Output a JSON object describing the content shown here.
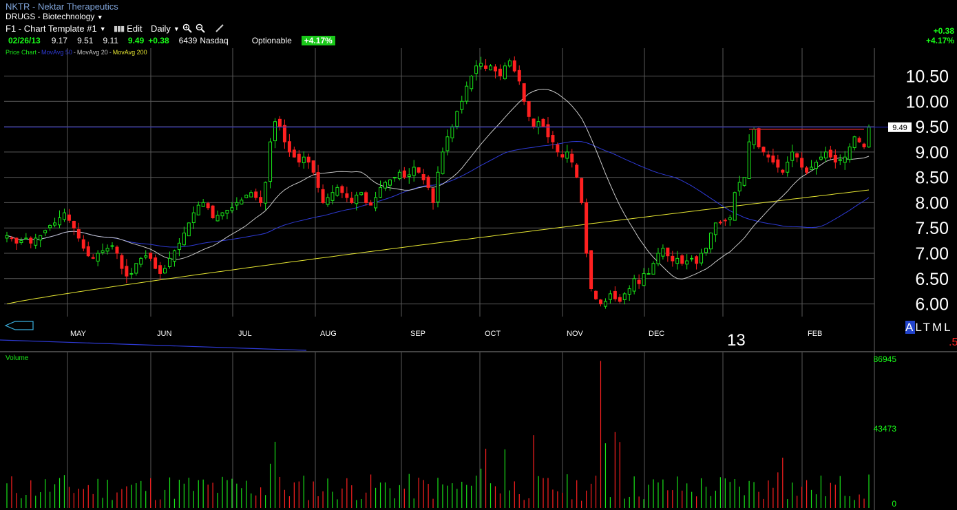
{
  "header": {
    "title": "NKTR - Nektar Therapeutics",
    "sector": "DRUGS - Biotechnology"
  },
  "toolbar": {
    "template_label": "F1 - Chart Template #1",
    "edit_label": "Edit",
    "period_label": "Daily"
  },
  "quote": {
    "date": "02/26/13",
    "open": "9.17",
    "high": "9.51",
    "low": "9.11",
    "last": "9.49",
    "change": "+0.38",
    "volume": "6439",
    "exchange": "Nasdaq",
    "optionable": "Optionable",
    "pct_badge": "+4.17%"
  },
  "right_change": {
    "change": "+0.38",
    "pct": "+4.17%"
  },
  "legend": {
    "price_chart": "Price Chart",
    "ma50": "MovAvg 50",
    "ma20": "MovAvg 20",
    "ma200": "MovAvg 200",
    "sep": "-"
  },
  "colors": {
    "up": "#19e619",
    "down": "#ff2020",
    "ma50": "#2e3ad6",
    "ma20": "#c8c8c8",
    "ma200": "#e6e632",
    "grid": "#5a5a5a",
    "last_line": "#2828d2",
    "resistance": "#c8282a"
  },
  "tml": {
    "a": "A",
    "l": "L",
    "t": "T",
    "m": "M",
    "l2": "L"
  },
  "year_label": "13",
  "corner_label": ".5",
  "chart_data": [
    {
      "type": "candlestick",
      "title": "",
      "y_ticks": [
        "10.50",
        "10.00",
        "9.50",
        "9.00",
        "8.50",
        "8.00",
        "7.50",
        "7.00",
        "6.50",
        "6.00"
      ],
      "ylim": [
        5.75,
        11.05
      ],
      "x_months": [
        "MAY",
        "JUN",
        "JUL",
        "AUG",
        "SEP",
        "OCT",
        "NOV",
        "DEC",
        "FEB"
      ],
      "last_price_label": "9.49",
      "last_price": 9.49,
      "close_series": [
        7.35,
        7.3,
        7.2,
        7.25,
        7.3,
        7.2,
        7.3,
        7.35,
        7.45,
        7.55,
        7.6,
        7.7,
        7.8,
        7.65,
        7.5,
        7.3,
        7.1,
        6.95,
        6.9,
        7.0,
        7.05,
        7.1,
        7.15,
        7.0,
        6.7,
        6.55,
        6.6,
        6.8,
        6.9,
        6.95,
        6.9,
        6.7,
        6.6,
        6.7,
        6.9,
        7.05,
        7.2,
        7.4,
        7.6,
        7.8,
        7.95,
        8.0,
        7.9,
        7.7,
        7.75,
        7.8,
        7.85,
        7.9,
        8.0,
        8.05,
        8.15,
        8.2,
        8.1,
        8.0,
        8.4,
        9.2,
        9.6,
        9.5,
        9.2,
        9.0,
        8.9,
        8.8,
        8.9,
        8.8,
        8.6,
        8.3,
        8.0,
        8.1,
        8.2,
        8.3,
        8.2,
        8.1,
        8.0,
        8.15,
        8.2,
        8.0,
        7.95,
        8.1,
        8.3,
        8.4,
        8.45,
        8.5,
        8.6,
        8.5,
        8.55,
        8.7,
        8.6,
        8.45,
        8.3,
        8.0,
        8.6,
        9.0,
        9.3,
        9.5,
        9.8,
        10.0,
        10.3,
        10.5,
        10.7,
        10.75,
        10.65,
        10.7,
        10.6,
        10.5,
        10.7,
        10.8,
        10.6,
        10.4,
        10.0,
        9.7,
        9.5,
        9.6,
        9.5,
        9.3,
        9.2,
        9.0,
        8.9,
        9.0,
        8.8,
        8.5,
        8.0,
        7.0,
        6.3,
        6.1,
        6.0,
        6.05,
        6.2,
        6.1,
        6.05,
        6.2,
        6.3,
        6.5,
        6.4,
        6.6,
        6.6,
        6.8,
        7.0,
        7.1,
        6.95,
        6.85,
        6.9,
        6.8,
        6.85,
        6.9,
        6.8,
        7.0,
        7.1,
        7.4,
        7.6,
        7.6,
        7.65,
        7.7,
        8.2,
        8.4,
        8.5,
        9.2,
        9.45,
        9.1,
        9.0,
        8.9,
        8.8,
        8.7,
        8.6,
        8.8,
        9.0,
        8.9,
        8.7,
        8.6,
        8.7,
        8.8,
        8.9,
        9.0,
        8.9,
        8.8,
        8.85,
        8.9,
        9.1,
        9.3,
        9.2,
        9.1,
        9.49
      ],
      "ma50": {
        "name": "MovAvg 50"
      },
      "ma20": {
        "name": "MovAvg 20"
      },
      "ma200": {
        "name": "MovAvg 200"
      }
    },
    {
      "type": "bar",
      "title": "Volume",
      "y_ticks": [
        "86945",
        "43473",
        "0"
      ],
      "ylim": [
        0,
        86945
      ]
    }
  ]
}
